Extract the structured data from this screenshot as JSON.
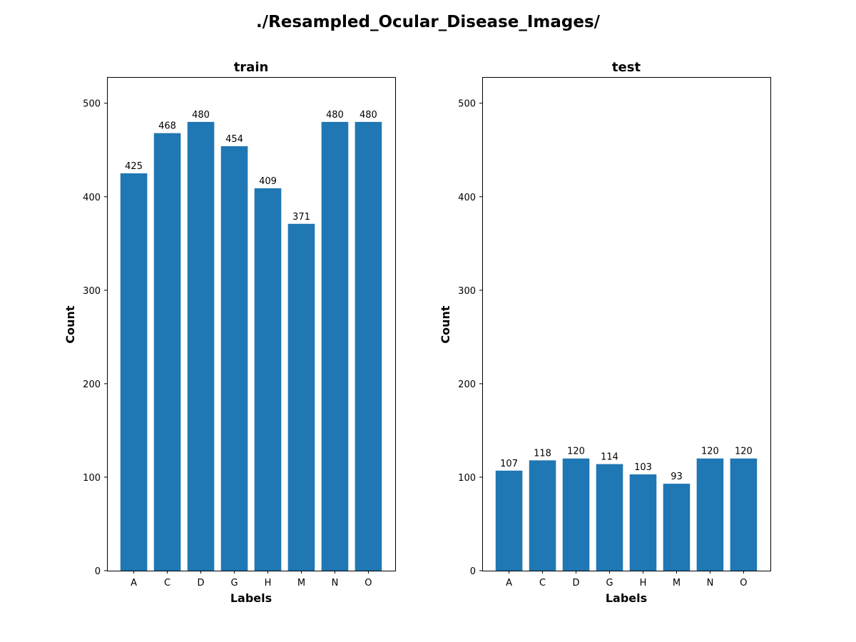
{
  "figure": {
    "suptitle": "./Resampled_Ocular_Disease_Images/"
  },
  "colors": {
    "bar": "#1f77b4"
  },
  "chart_data": [
    {
      "type": "bar",
      "title": "train",
      "xlabel": "Labels",
      "ylabel": "Count",
      "categories": [
        "A",
        "C",
        "D",
        "G",
        "H",
        "M",
        "N",
        "O"
      ],
      "values": [
        425,
        468,
        480,
        454,
        409,
        371,
        480,
        480
      ],
      "data_labels": [
        "425",
        "468",
        "480",
        "454",
        "409",
        "371",
        "480",
        "480"
      ],
      "ylim": [
        0,
        528
      ],
      "yticks": [
        0,
        100,
        200,
        300,
        400,
        500
      ],
      "ytick_labels": [
        "0",
        "100",
        "200",
        "300",
        "400",
        "500"
      ],
      "grid": false
    },
    {
      "type": "bar",
      "title": "test",
      "xlabel": "Labels",
      "ylabel": "Count",
      "categories": [
        "A",
        "C",
        "D",
        "G",
        "H",
        "M",
        "N",
        "O"
      ],
      "values": [
        107,
        118,
        120,
        114,
        103,
        93,
        120,
        120
      ],
      "data_labels": [
        "107",
        "118",
        "120",
        "114",
        "103",
        "93",
        "120",
        "120"
      ],
      "ylim": [
        0,
        528
      ],
      "yticks": [
        0,
        100,
        200,
        300,
        400,
        500
      ],
      "ytick_labels": [
        "0",
        "100",
        "200",
        "300",
        "400",
        "500"
      ],
      "grid": false
    }
  ]
}
